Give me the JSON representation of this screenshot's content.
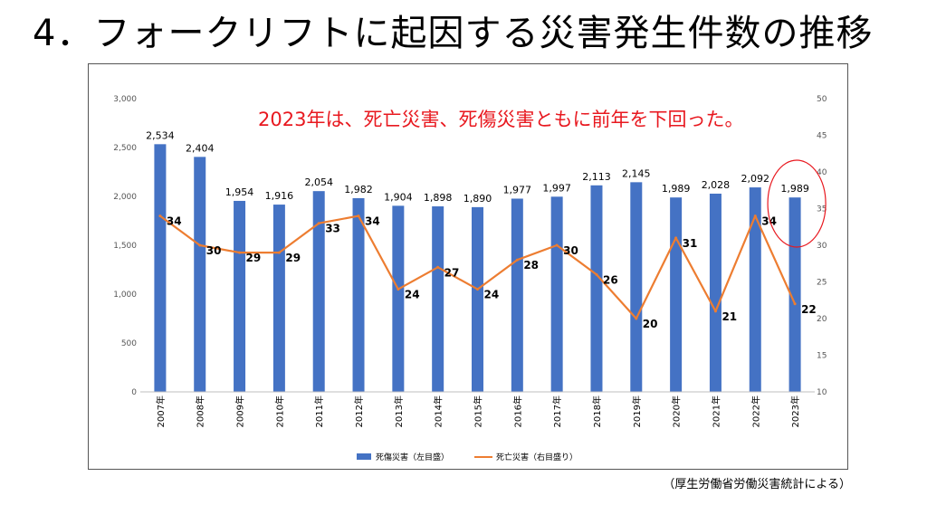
{
  "page": {
    "title": "4．フォークリフトに起因する災害発生件数の推移",
    "annotation": "2023年は、死亡災害、死傷災害ともに前年を下回った。",
    "source": "（厚生労働省労働災害統計による）"
  },
  "colors": {
    "bar": "#4472c4",
    "line": "#ed7d31",
    "annotation": "#e8181f",
    "highlight_circle": "#e8181f"
  },
  "chart_data": {
    "type": "bar",
    "categories": [
      "2007年",
      "2008年",
      "2009年",
      "2010年",
      "2011年",
      "2012年",
      "2013年",
      "2014年",
      "2015年",
      "2016年",
      "2017年",
      "2018年",
      "2019年",
      "2020年",
      "2021年",
      "2022年",
      "2023年"
    ],
    "series": [
      {
        "name": "死傷災害（左目盛）",
        "type": "bar",
        "axis": "left",
        "values": [
          2534,
          2404,
          1954,
          1916,
          2054,
          1982,
          1904,
          1898,
          1890,
          1977,
          1997,
          2113,
          2145,
          1989,
          2028,
          2092,
          1989
        ],
        "labels": [
          "2,534",
          "2,404",
          "1,954",
          "1,916",
          "2,054",
          "1,982",
          "1,904",
          "1,898",
          "1,890",
          "1,977",
          "1,997",
          "2,113",
          "2,145",
          "1,989",
          "2,028",
          "2,092",
          "1,989"
        ]
      },
      {
        "name": "死亡災害（右目盛り）",
        "type": "line",
        "axis": "right",
        "values": [
          34,
          30,
          29,
          29,
          33,
          34,
          24,
          27,
          24,
          28,
          30,
          26,
          20,
          31,
          21,
          34,
          22
        ]
      }
    ],
    "y_left": {
      "lim": [
        0,
        3000
      ],
      "ticks": [
        0,
        500,
        1000,
        1500,
        2000,
        2500,
        3000
      ],
      "tick_labels": [
        "0",
        "500",
        "1,000",
        "1,500",
        "2,000",
        "2,500",
        "3,000"
      ]
    },
    "y_right": {
      "lim": [
        10,
        50
      ],
      "ticks": [
        10,
        15,
        20,
        25,
        30,
        35,
        40,
        45,
        50
      ],
      "tick_labels": [
        "10",
        "15",
        "20",
        "25",
        "30",
        "35",
        "40",
        "45",
        "50"
      ]
    },
    "legend_position": "bottom",
    "grid": false,
    "highlight": "2023年"
  }
}
